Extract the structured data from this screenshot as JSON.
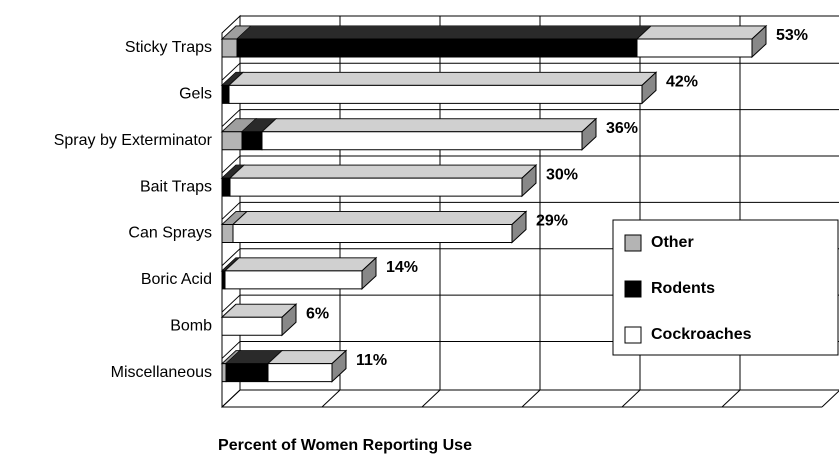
{
  "chart_data": {
    "type": "bar3d",
    "x_label": "Percent of Women Reporting Use",
    "categories": [
      "Sticky Traps",
      "Gels",
      "Spray by Exterminator",
      "Bait Traps",
      "Can Sprays",
      "Boric Acid",
      "Bomb",
      "Miscellaneous"
    ],
    "series": [
      {
        "name": "Other",
        "color": "#b4b4b4",
        "values": [
          1.5,
          0,
          2,
          0,
          1.1,
          0,
          0,
          0.4
        ]
      },
      {
        "name": "Rodents",
        "color": "#000000",
        "values": [
          40,
          0.7,
          2,
          0.8,
          0,
          0.3,
          0,
          4.2
        ]
      },
      {
        "name": "Cockroaches",
        "color": "#ffffff",
        "values": [
          11.5,
          41.3,
          32,
          29.2,
          27.9,
          13.7,
          6,
          6.4
        ]
      }
    ],
    "totals": [
      53,
      42,
      36,
      30,
      29,
      14,
      6,
      11
    ],
    "total_labels": [
      "53%",
      "42%",
      "36%",
      "30%",
      "29%",
      "14%",
      "6%",
      "11%"
    ],
    "xlim": [
      0,
      60
    ],
    "xticks": [
      0,
      10,
      20,
      30,
      40,
      50,
      60
    ],
    "grid": true
  }
}
